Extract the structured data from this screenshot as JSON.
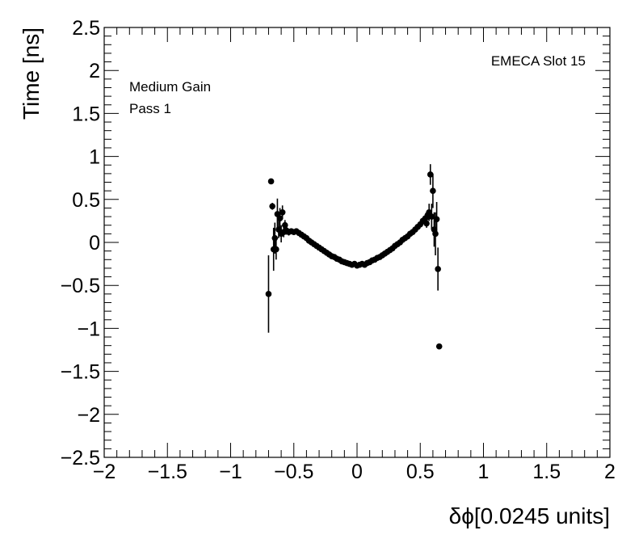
{
  "chart_data": {
    "type": "scatter",
    "xlabel": "δϕ[0.0245 units]",
    "ylabel": "Time [ns]",
    "xlim": [
      -2,
      2
    ],
    "ylim": [
      -2.5,
      2.5
    ],
    "x_ticks": [
      -2,
      -1.5,
      -1,
      -0.5,
      0,
      0.5,
      1,
      1.5,
      2
    ],
    "x_tick_labels": [
      "−2",
      "−1.5",
      "−1",
      "−0.5",
      "0",
      "0.5",
      "1",
      "1.5",
      "2"
    ],
    "y_ticks": [
      -2.5,
      -2,
      -1.5,
      -1,
      -0.5,
      0,
      0.5,
      1,
      1.5,
      2,
      2.5
    ],
    "y_tick_labels": [
      "−2.5",
      "−2",
      "−1.5",
      "−1",
      "−0.5",
      "0",
      "0.5",
      "1",
      "1.5",
      "2",
      "2.5"
    ],
    "annotations": {
      "slot": "EMECA Slot 15",
      "gain": "Medium Gain",
      "pass": "Pass 1"
    },
    "grid": false,
    "points": [
      {
        "x": -0.7,
        "y": -0.6,
        "err": 0.45
      },
      {
        "x": -0.68,
        "y": 0.71,
        "err": 0.02
      },
      {
        "x": -0.67,
        "y": 0.42,
        "err": 0.04
      },
      {
        "x": -0.66,
        "y": -0.08,
        "err": 0.25
      },
      {
        "x": -0.65,
        "y": 0.05,
        "err": 0.18
      },
      {
        "x": -0.64,
        "y": -0.08,
        "err": 0.12
      },
      {
        "x": -0.63,
        "y": 0.33,
        "err": 0.18
      },
      {
        "x": -0.62,
        "y": 0.15,
        "err": 0.1
      },
      {
        "x": -0.61,
        "y": 0.28,
        "err": 0.12
      },
      {
        "x": -0.6,
        "y": 0.1,
        "err": 0.1
      },
      {
        "x": -0.59,
        "y": 0.35,
        "err": 0.08
      },
      {
        "x": -0.58,
        "y": 0.12,
        "err": 0.06
      },
      {
        "x": -0.57,
        "y": 0.2,
        "err": 0.06
      },
      {
        "x": -0.56,
        "y": 0.14,
        "err": 0.05
      },
      {
        "x": -0.54,
        "y": 0.12,
        "err": 0.04
      },
      {
        "x": -0.52,
        "y": 0.13,
        "err": 0.03
      },
      {
        "x": -0.5,
        "y": 0.12,
        "err": 0.03
      },
      {
        "x": -0.48,
        "y": 0.13,
        "err": 0.02
      },
      {
        "x": -0.46,
        "y": 0.11,
        "err": 0.02
      },
      {
        "x": -0.44,
        "y": 0.09,
        "err": 0.02
      },
      {
        "x": -0.42,
        "y": 0.07,
        "err": 0.02
      },
      {
        "x": -0.4,
        "y": 0.05,
        "err": 0.02
      },
      {
        "x": -0.38,
        "y": 0.02,
        "err": 0.02
      },
      {
        "x": -0.36,
        "y": 0.0,
        "err": 0.02
      },
      {
        "x": -0.34,
        "y": -0.02,
        "err": 0.02
      },
      {
        "x": -0.32,
        "y": -0.04,
        "err": 0.02
      },
      {
        "x": -0.3,
        "y": -0.06,
        "err": 0.02
      },
      {
        "x": -0.28,
        "y": -0.08,
        "err": 0.02
      },
      {
        "x": -0.26,
        "y": -0.1,
        "err": 0.02
      },
      {
        "x": -0.24,
        "y": -0.12,
        "err": 0.02
      },
      {
        "x": -0.22,
        "y": -0.14,
        "err": 0.02
      },
      {
        "x": -0.2,
        "y": -0.16,
        "err": 0.02
      },
      {
        "x": -0.18,
        "y": -0.17,
        "err": 0.02
      },
      {
        "x": -0.16,
        "y": -0.19,
        "err": 0.02
      },
      {
        "x": -0.14,
        "y": -0.2,
        "err": 0.02
      },
      {
        "x": -0.12,
        "y": -0.22,
        "err": 0.02
      },
      {
        "x": -0.1,
        "y": -0.23,
        "err": 0.02
      },
      {
        "x": -0.08,
        "y": -0.24,
        "err": 0.02
      },
      {
        "x": -0.06,
        "y": -0.25,
        "err": 0.02
      },
      {
        "x": -0.04,
        "y": -0.26,
        "err": 0.02
      },
      {
        "x": -0.02,
        "y": -0.25,
        "err": 0.02
      },
      {
        "x": 0.0,
        "y": -0.27,
        "err": 0.02
      },
      {
        "x": 0.02,
        "y": -0.26,
        "err": 0.02
      },
      {
        "x": 0.04,
        "y": -0.25,
        "err": 0.02
      },
      {
        "x": 0.06,
        "y": -0.26,
        "err": 0.02
      },
      {
        "x": 0.08,
        "y": -0.24,
        "err": 0.02
      },
      {
        "x": 0.1,
        "y": -0.23,
        "err": 0.02
      },
      {
        "x": 0.12,
        "y": -0.21,
        "err": 0.02
      },
      {
        "x": 0.14,
        "y": -0.2,
        "err": 0.02
      },
      {
        "x": 0.16,
        "y": -0.18,
        "err": 0.02
      },
      {
        "x": 0.18,
        "y": -0.17,
        "err": 0.02
      },
      {
        "x": 0.2,
        "y": -0.15,
        "err": 0.02
      },
      {
        "x": 0.22,
        "y": -0.13,
        "err": 0.02
      },
      {
        "x": 0.24,
        "y": -0.11,
        "err": 0.02
      },
      {
        "x": 0.26,
        "y": -0.09,
        "err": 0.02
      },
      {
        "x": 0.28,
        "y": -0.07,
        "err": 0.02
      },
      {
        "x": 0.3,
        "y": -0.04,
        "err": 0.02
      },
      {
        "x": 0.32,
        "y": -0.02,
        "err": 0.02
      },
      {
        "x": 0.34,
        "y": 0.0,
        "err": 0.02
      },
      {
        "x": 0.36,
        "y": 0.03,
        "err": 0.02
      },
      {
        "x": 0.38,
        "y": 0.05,
        "err": 0.02
      },
      {
        "x": 0.4,
        "y": 0.07,
        "err": 0.02
      },
      {
        "x": 0.42,
        "y": 0.1,
        "err": 0.02
      },
      {
        "x": 0.44,
        "y": 0.12,
        "err": 0.02
      },
      {
        "x": 0.46,
        "y": 0.15,
        "err": 0.03
      },
      {
        "x": 0.48,
        "y": 0.18,
        "err": 0.03
      },
      {
        "x": 0.5,
        "y": 0.21,
        "err": 0.03
      },
      {
        "x": 0.52,
        "y": 0.25,
        "err": 0.04
      },
      {
        "x": 0.54,
        "y": 0.28,
        "err": 0.05
      },
      {
        "x": 0.55,
        "y": 0.22,
        "err": 0.05
      },
      {
        "x": 0.56,
        "y": 0.32,
        "err": 0.06
      },
      {
        "x": 0.57,
        "y": 0.35,
        "err": 0.1
      },
      {
        "x": 0.58,
        "y": 0.79,
        "err": 0.12
      },
      {
        "x": 0.59,
        "y": 0.3,
        "err": 0.15
      },
      {
        "x": 0.6,
        "y": 0.6,
        "err": 0.2
      },
      {
        "x": 0.61,
        "y": 0.15,
        "err": 0.2
      },
      {
        "x": 0.62,
        "y": 0.1,
        "err": 0.25
      },
      {
        "x": 0.63,
        "y": 0.27,
        "err": 0.2
      },
      {
        "x": 0.64,
        "y": -0.31,
        "err": 0.25
      },
      {
        "x": 0.65,
        "y": -1.21,
        "err": 0.01
      }
    ]
  }
}
